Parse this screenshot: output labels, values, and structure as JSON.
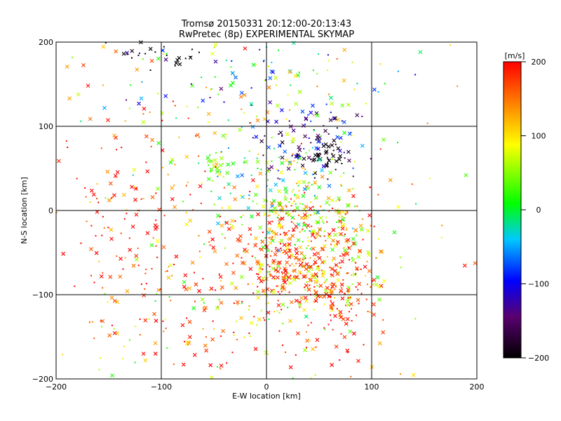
{
  "chart_data": {
    "type": "scatter",
    "title": "Tromsø 20150331 20:12:00-20:13:43",
    "subtitle": "RwPretec (8p) EXPERIMENTAL SKYMAP",
    "xlabel": "E-W location [km]",
    "ylabel": "N-S location [km]",
    "xlim": [
      -200,
      200
    ],
    "ylim": [
      -200,
      200
    ],
    "xticks": [
      "−200",
      "−100",
      "0",
      "100",
      "200"
    ],
    "yticks": [
      "200",
      "100",
      "0",
      "−100",
      "−200"
    ],
    "grid": true,
    "colorbar": {
      "label": "[m/s]",
      "range": [
        -200,
        200
      ],
      "ticks": [
        "200",
        "100",
        "0",
        "−100",
        "−200"
      ],
      "colormap": [
        "#000000",
        "#5a0070",
        "#0000ff",
        "#00c8ff",
        "#00ff00",
        "#ffff00",
        "#ff8000",
        "#ff0000"
      ],
      "placement": "right"
    },
    "markers": [
      "dot",
      "x"
    ],
    "clusters": [
      {
        "cx": 55,
        "cy": 65,
        "sx": 12,
        "sy": 10,
        "n": 40,
        "v": -195,
        "dv": 10
      },
      {
        "cx": 40,
        "cy": 85,
        "sx": 30,
        "sy": 22,
        "n": 90,
        "v": -130,
        "dv": 60
      },
      {
        "cx": -45,
        "cy": 55,
        "sx": 8,
        "sy": 8,
        "n": 25,
        "v": 40,
        "dv": 30
      },
      {
        "cx": 50,
        "cy": -30,
        "sx": 35,
        "sy": 30,
        "n": 260,
        "v": 120,
        "dv": 110
      },
      {
        "cx": 45,
        "cy": -85,
        "sx": 30,
        "sy": 18,
        "n": 180,
        "v": 130,
        "dv": 90
      },
      {
        "cx": 65,
        "cy": -120,
        "sx": 18,
        "sy": 30,
        "n": 70,
        "v": 190,
        "dv": 25
      },
      {
        "cx": 15,
        "cy": 25,
        "sx": 35,
        "sy": 35,
        "n": 180,
        "v": 40,
        "dv": 110
      },
      {
        "cx": -10,
        "cy": 150,
        "sx": 70,
        "sy": 35,
        "n": 120,
        "v": 0,
        "dv": 150
      },
      {
        "cx": -100,
        "cy": 185,
        "sx": 30,
        "sy": 12,
        "n": 25,
        "v": -195,
        "dv": 10
      },
      {
        "cx": -120,
        "cy": -20,
        "sx": 60,
        "sy": 90,
        "n": 230,
        "v": 170,
        "dv": 60
      },
      {
        "cx": -20,
        "cy": -130,
        "sx": 60,
        "sy": 50,
        "n": 150,
        "v": 130,
        "dv": 120
      },
      {
        "cx": 0,
        "cy": 0,
        "sx": 200,
        "sy": 200,
        "n": 260,
        "v": 100,
        "dv": 130
      },
      {
        "cx": 10,
        "cy": -60,
        "sx": 25,
        "sy": 20,
        "n": 80,
        "v": 180,
        "dv": 40
      }
    ]
  }
}
